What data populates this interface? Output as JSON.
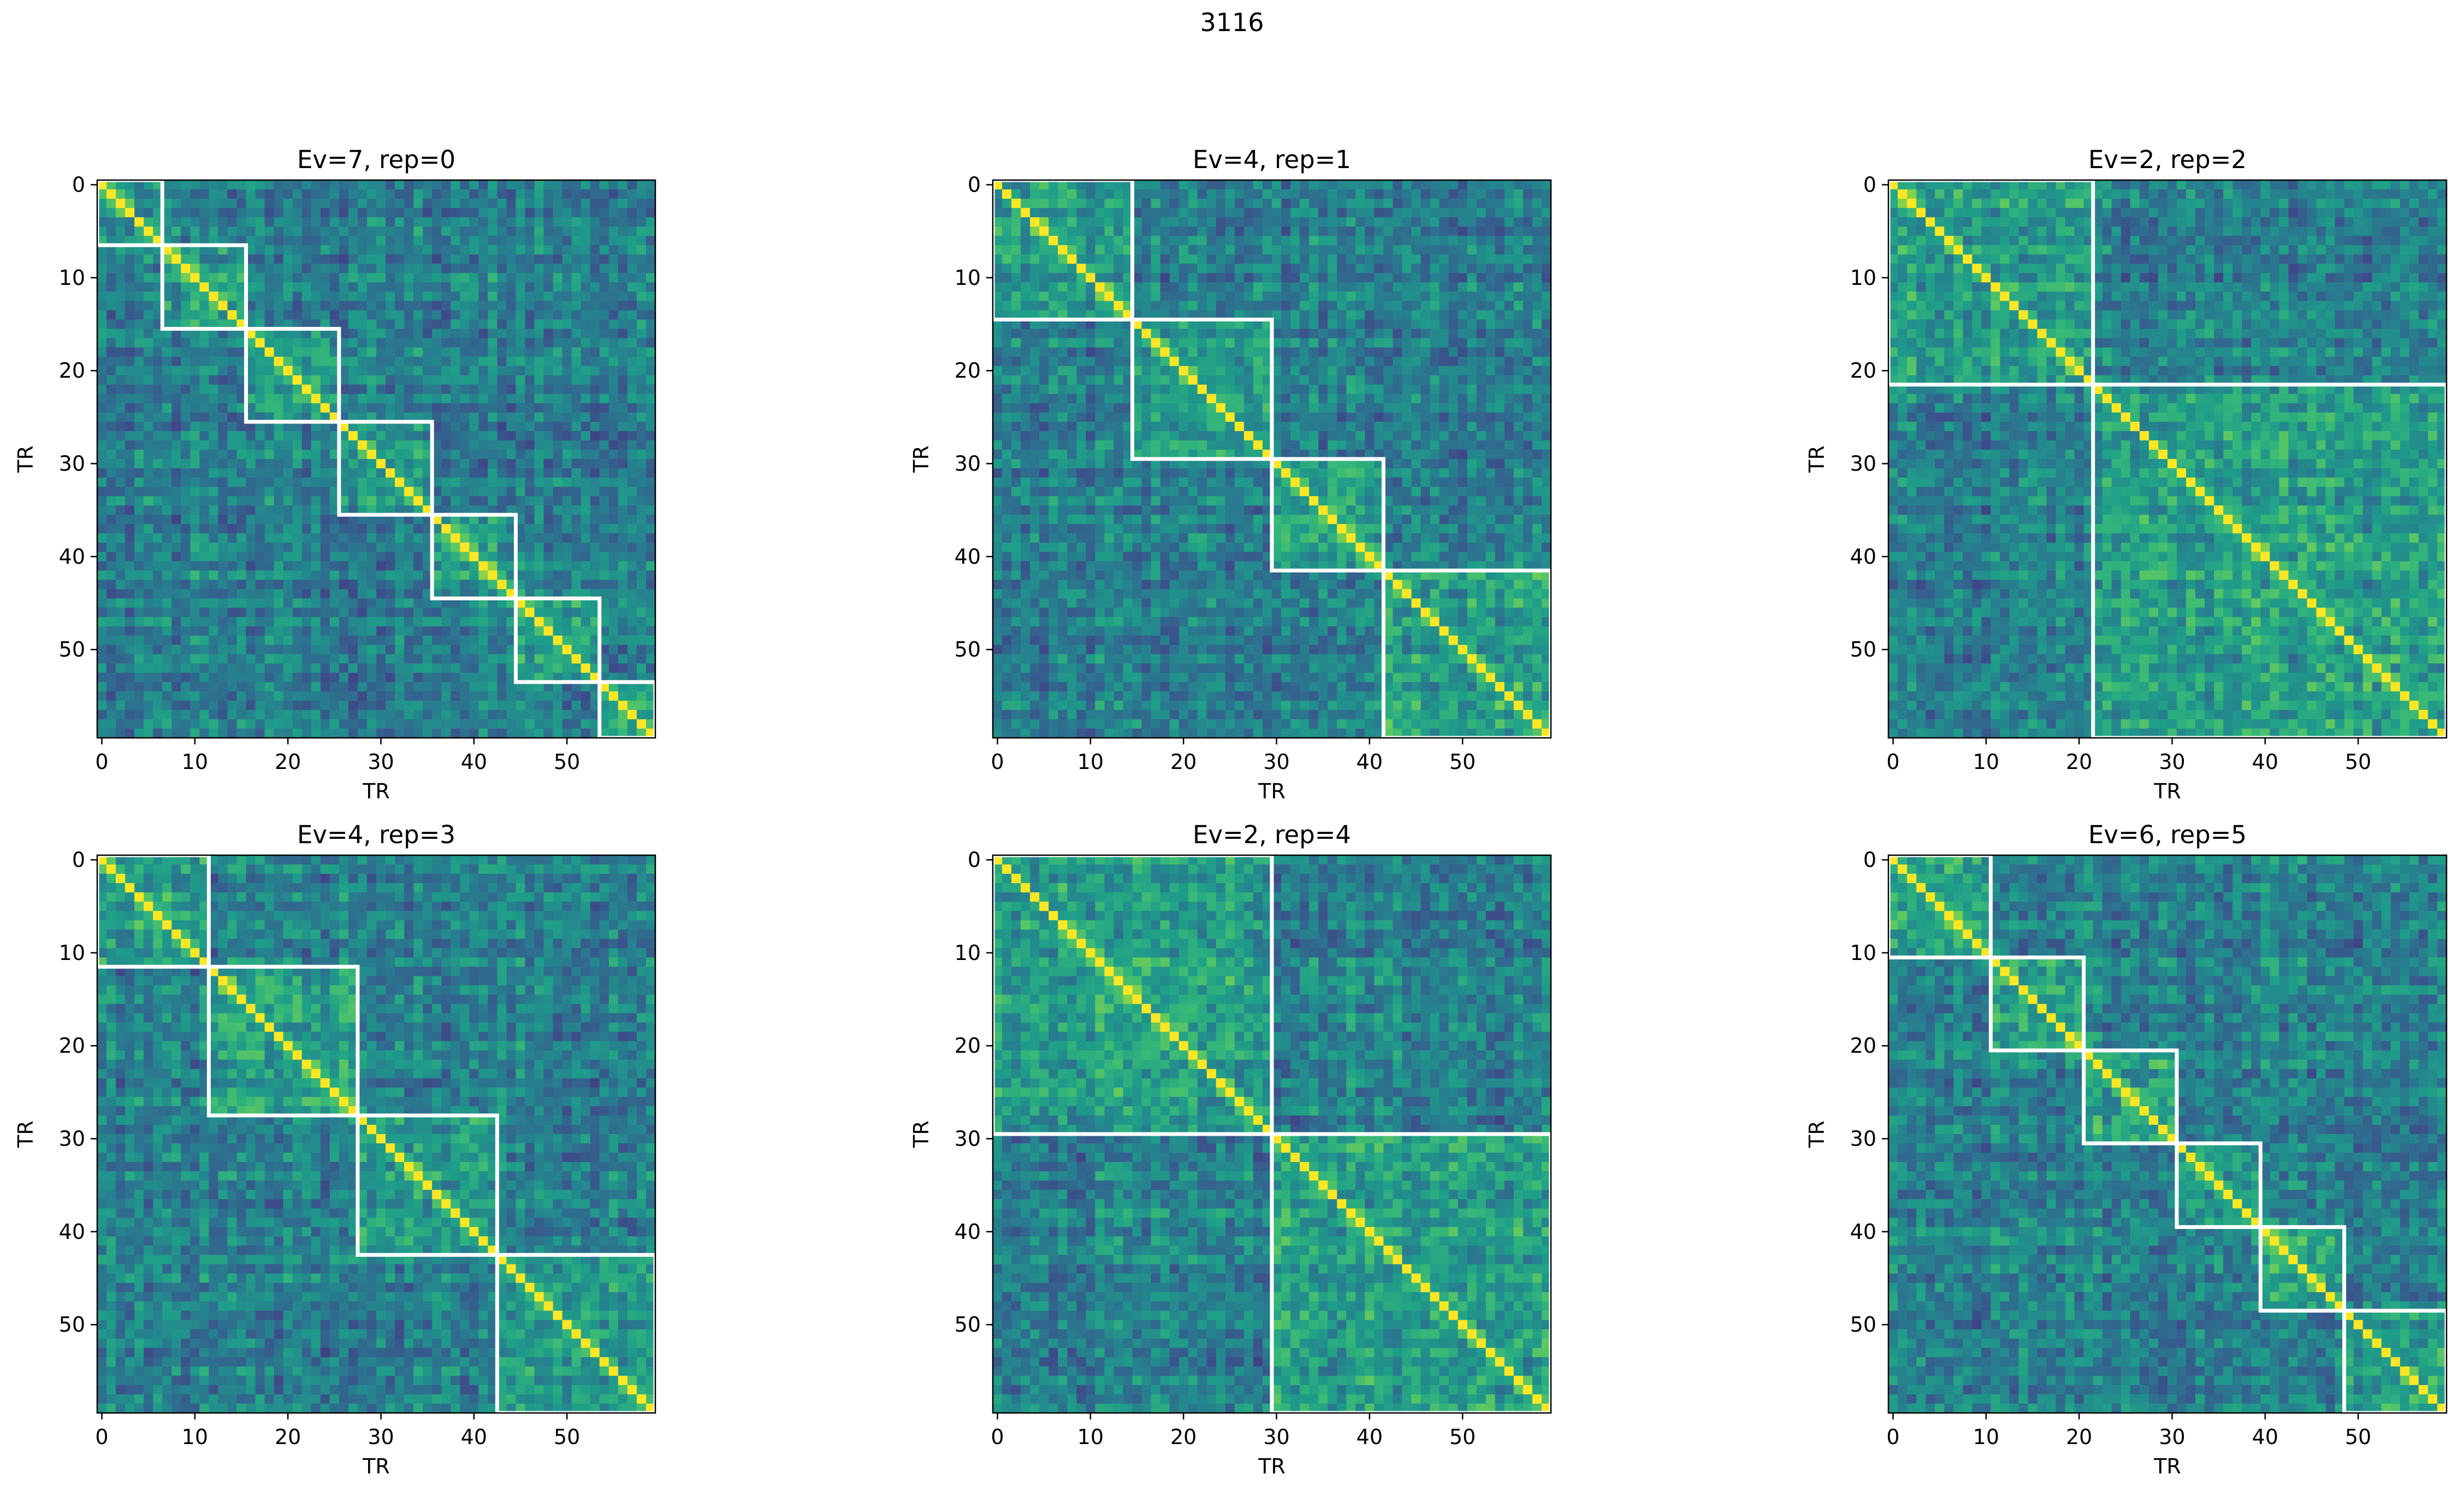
{
  "figure_title": "3116",
  "colormap": "viridis",
  "boundary_color": "#ffffff",
  "chart_data": [
    {
      "type": "heatmap",
      "title": "Ev=7, rep=0",
      "xlabel": "TR",
      "ylabel": "TR",
      "n": 60,
      "ticks": [
        0,
        10,
        20,
        30,
        40,
        50
      ],
      "event_boundaries": [
        7,
        16,
        26,
        36,
        45,
        54
      ]
    },
    {
      "type": "heatmap",
      "title": "Ev=4, rep=1",
      "xlabel": "TR",
      "ylabel": "TR",
      "n": 60,
      "ticks": [
        0,
        10,
        20,
        30,
        40,
        50
      ],
      "event_boundaries": [
        15,
        30,
        42
      ]
    },
    {
      "type": "heatmap",
      "title": "Ev=2, rep=2",
      "xlabel": "TR",
      "ylabel": "TR",
      "n": 60,
      "ticks": [
        0,
        10,
        20,
        30,
        40,
        50
      ],
      "event_boundaries": [
        22
      ]
    },
    {
      "type": "heatmap",
      "title": "Ev=4, rep=3",
      "xlabel": "TR",
      "ylabel": "TR",
      "n": 60,
      "ticks": [
        0,
        10,
        20,
        30,
        40,
        50
      ],
      "event_boundaries": [
        12,
        28,
        43
      ]
    },
    {
      "type": "heatmap",
      "title": "Ev=2, rep=4",
      "xlabel": "TR",
      "ylabel": "TR",
      "n": 60,
      "ticks": [
        0,
        10,
        20,
        30,
        40,
        50
      ],
      "event_boundaries": [
        30
      ]
    },
    {
      "type": "heatmap",
      "title": "Ev=6, rep=5",
      "xlabel": "TR",
      "ylabel": "TR",
      "n": 60,
      "ticks": [
        0,
        10,
        20,
        30,
        40,
        50
      ],
      "event_boundaries": [
        11,
        21,
        31,
        40,
        49
      ]
    }
  ]
}
